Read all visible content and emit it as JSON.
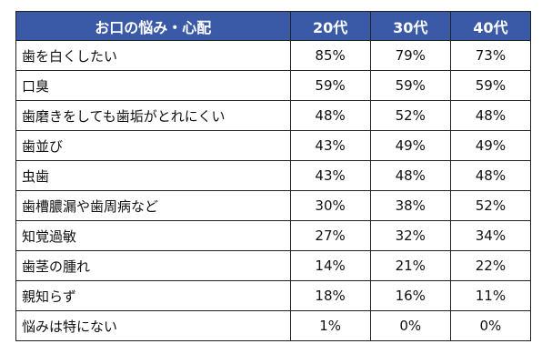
{
  "colors": {
    "header_bg": "#3a5aa8",
    "header_text": "#ffffff",
    "border": "#222222"
  },
  "chart_data": {
    "type": "table",
    "columns": [
      "お口の悩み・心配",
      "20代",
      "30代",
      "40代"
    ],
    "rows": [
      {
        "label": "歯を白くしたい",
        "values": [
          "85%",
          "79%",
          "73%"
        ]
      },
      {
        "label": "口臭",
        "values": [
          "59%",
          "59%",
          "59%"
        ]
      },
      {
        "label": "歯磨きをしても歯垢がとれにくい",
        "values": [
          "48%",
          "52%",
          "48%"
        ]
      },
      {
        "label": "歯並び",
        "values": [
          "43%",
          "49%",
          "49%"
        ]
      },
      {
        "label": "虫歯",
        "values": [
          "43%",
          "48%",
          "48%"
        ]
      },
      {
        "label": "歯槽膿漏や歯周病など",
        "values": [
          "30%",
          "38%",
          "52%"
        ]
      },
      {
        "label": "知覚過敏",
        "values": [
          "27%",
          "32%",
          "34%"
        ]
      },
      {
        "label": "歯茎の腫れ",
        "values": [
          "14%",
          "21%",
          "22%"
        ]
      },
      {
        "label": "親知らず",
        "values": [
          "18%",
          "16%",
          "11%"
        ]
      },
      {
        "label": "悩みは特にない",
        "values": [
          "1%",
          "0%",
          "0%"
        ]
      }
    ]
  }
}
